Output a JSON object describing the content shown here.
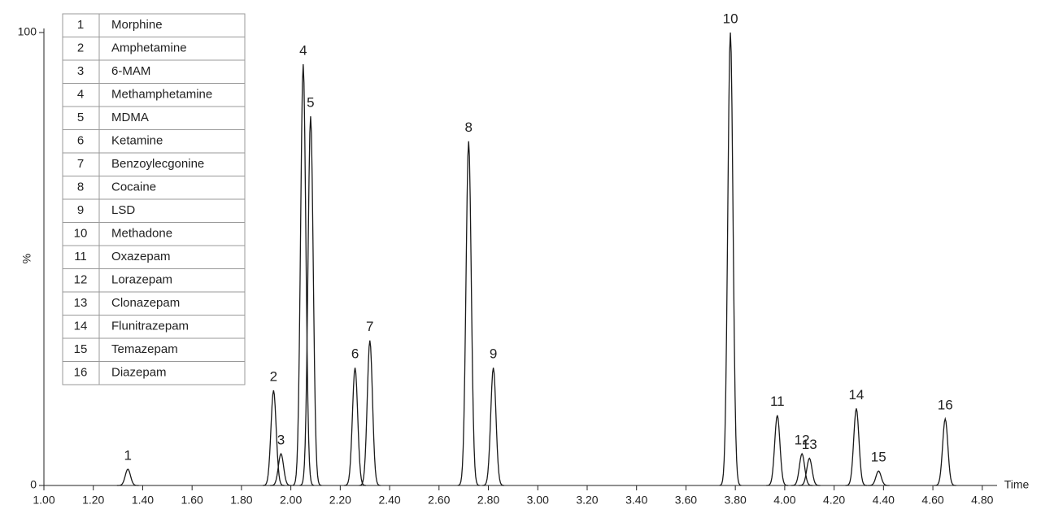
{
  "chart_data": {
    "type": "chromatogram",
    "x_label": "Time",
    "y_label": "%",
    "xlim": [
      1.0,
      4.86
    ],
    "ylim": [
      0,
      100
    ],
    "xticks": [
      {
        "value": 1.0,
        "label": "1.00"
      },
      {
        "value": 1.2,
        "label": "1.20"
      },
      {
        "value": 1.4,
        "label": "1.40"
      },
      {
        "value": 1.6,
        "label": "1.60"
      },
      {
        "value": 1.8,
        "label": "1.80"
      },
      {
        "value": 2.0,
        "label": "2.00"
      },
      {
        "value": 2.2,
        "label": "2.20"
      },
      {
        "value": 2.4,
        "label": "2.40"
      },
      {
        "value": 2.6,
        "label": "2.60"
      },
      {
        "value": 2.8,
        "label": "2.80"
      },
      {
        "value": 3.0,
        "label": "3.00"
      },
      {
        "value": 3.2,
        "label": "3.20"
      },
      {
        "value": 3.4,
        "label": "3.40"
      },
      {
        "value": 3.6,
        "label": "3.60"
      },
      {
        "value": 3.8,
        "label": "3.80"
      },
      {
        "value": 4.0,
        "label": "4.00"
      },
      {
        "value": 4.2,
        "label": "4.20"
      },
      {
        "value": 4.4,
        "label": "4.40"
      },
      {
        "value": 4.6,
        "label": "4.60"
      },
      {
        "value": 4.8,
        "label": "4.80"
      }
    ],
    "yticks": [
      0,
      100
    ],
    "color": "#1a1a1a",
    "peak_labels": [
      "1",
      "2",
      "3",
      "4",
      "5",
      "6",
      "7",
      "8",
      "9",
      "10",
      "11",
      "12",
      "13",
      "14",
      "15",
      "16"
    ],
    "x": [
      1.34,
      1.93,
      1.96,
      2.05,
      2.08,
      2.26,
      2.32,
      2.72,
      2.82,
      3.78,
      3.97,
      4.07,
      4.1,
      4.29,
      4.38,
      4.65
    ],
    "values": [
      3.6,
      21,
      7,
      93,
      81.5,
      26,
      32,
      76,
      26,
      100,
      15.5,
      7,
      6,
      17,
      3.2,
      14.7
    ],
    "legend": {
      "rows": [
        [
          "1",
          "Morphine"
        ],
        [
          "2",
          "Amphetamine"
        ],
        [
          "3",
          "6-MAM"
        ],
        [
          "4",
          "Methamphetamine"
        ],
        [
          "5",
          "MDMA"
        ],
        [
          "6",
          "Ketamine"
        ],
        [
          "7",
          "Benzoylecgonine"
        ],
        [
          "8",
          "Cocaine"
        ],
        [
          "9",
          "LSD"
        ],
        [
          "10",
          "Methadone"
        ],
        [
          "11",
          "Oxazepam"
        ],
        [
          "12",
          "Lorazepam"
        ],
        [
          "13",
          "Clonazepam"
        ],
        [
          "14",
          "Flunitrazepam"
        ],
        [
          "15",
          "Temazepam"
        ],
        [
          "16",
          "Diazepam"
        ]
      ]
    }
  }
}
